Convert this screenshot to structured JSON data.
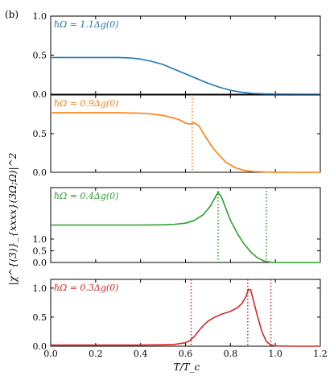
{
  "figure": {
    "panel_label": "(b)",
    "xlabel": "T/T_c",
    "ylabel": "|χ^{(3)}_{xxxx}(3Ω;Ω)|^2"
  },
  "chart_data": [
    {
      "type": "line",
      "annotation": "ℏΩ = 1.1Δg(0)",
      "color": "#1f77b4",
      "xlim": [
        0.0,
        1.2
      ],
      "ylim": [
        0.0,
        1.0
      ],
      "yticks": [
        "0.0",
        "0.5",
        "1.0"
      ],
      "xticks": [
        "0.0",
        "0.2",
        "0.4",
        "0.6",
        "0.8",
        "1.0",
        "1.2"
      ],
      "series": [
        {
          "x": [
            0.0,
            0.1,
            0.2,
            0.3,
            0.35,
            0.4,
            0.45,
            0.5,
            0.55,
            0.6,
            0.65,
            0.7,
            0.75,
            0.8,
            0.85,
            0.9,
            0.95,
            1.0,
            1.05,
            1.1,
            1.2
          ],
          "values": [
            0.47,
            0.47,
            0.47,
            0.47,
            0.465,
            0.45,
            0.42,
            0.38,
            0.32,
            0.26,
            0.2,
            0.14,
            0.09,
            0.05,
            0.025,
            0.01,
            0.004,
            0.002,
            0.001,
            0.0,
            0.0
          ]
        }
      ],
      "vlines": []
    },
    {
      "type": "line",
      "annotation": "ℏΩ = 0.9Δg(0)",
      "color": "#ff7f0e",
      "xlim": [
        0.0,
        1.2
      ],
      "ylim": [
        0.0,
        1.0
      ],
      "yticks": [
        "0.0",
        "0.5"
      ],
      "xticks": [
        "0.0",
        "0.2",
        "0.4",
        "0.6",
        "0.8",
        "1.0",
        "1.2"
      ],
      "series": [
        {
          "x": [
            0.0,
            0.1,
            0.2,
            0.3,
            0.4,
            0.45,
            0.5,
            0.55,
            0.58,
            0.6,
            0.62,
            0.64,
            0.66,
            0.68,
            0.7,
            0.72,
            0.75,
            0.78,
            0.82,
            0.86,
            0.9,
            0.95,
            1.0,
            1.1,
            1.2
          ],
          "values": [
            0.77,
            0.77,
            0.77,
            0.77,
            0.765,
            0.755,
            0.735,
            0.7,
            0.67,
            0.635,
            0.625,
            0.64,
            0.6,
            0.5,
            0.41,
            0.32,
            0.22,
            0.13,
            0.06,
            0.025,
            0.01,
            0.004,
            0.001,
            0.0,
            0.0
          ]
        }
      ],
      "vlines": [
        0.63
      ]
    },
    {
      "type": "line",
      "annotation": "ℏΩ = 0.4Δg(0)",
      "color": "#2ca02c",
      "xlim": [
        0.0,
        1.2
      ],
      "ylim": [
        0.0,
        3.2
      ],
      "yticks": [
        "0.0",
        "0.5",
        "1.0"
      ],
      "xticks": [
        "0.0",
        "0.2",
        "0.4",
        "0.6",
        "0.8",
        "1.0",
        "1.2"
      ],
      "series": [
        {
          "x": [
            0.0,
            0.1,
            0.2,
            0.3,
            0.4,
            0.5,
            0.55,
            0.6,
            0.64,
            0.68,
            0.71,
            0.73,
            0.745,
            0.76,
            0.78,
            0.8,
            0.83,
            0.86,
            0.89,
            0.92,
            0.95,
            0.98,
            1.0,
            1.1,
            1.2
          ],
          "values": [
            1.6,
            1.6,
            1.6,
            1.6,
            1.6,
            1.61,
            1.63,
            1.68,
            1.8,
            2.05,
            2.4,
            2.75,
            3.0,
            2.8,
            2.3,
            1.8,
            1.25,
            0.8,
            0.45,
            0.2,
            0.06,
            0.01,
            0.0,
            0.0,
            0.0
          ]
        }
      ],
      "vlines": [
        0.745,
        0.96
      ]
    },
    {
      "type": "line",
      "annotation": "ℏΩ = 0.3Δg(0)",
      "color": "#d62728",
      "xlim": [
        0.0,
        1.2
      ],
      "ylim": [
        0.0,
        1.15
      ],
      "yticks": [
        "0.0",
        "0.5",
        "1.0"
      ],
      "xticks": [
        "0.0",
        "0.2",
        "0.4",
        "0.6",
        "0.8",
        "1.0",
        "1.2"
      ],
      "series": [
        {
          "x": [
            0.0,
            0.1,
            0.2,
            0.3,
            0.4,
            0.5,
            0.55,
            0.6,
            0.62,
            0.64,
            0.66,
            0.68,
            0.7,
            0.73,
            0.76,
            0.8,
            0.83,
            0.85,
            0.87,
            0.88,
            0.89,
            0.9,
            0.92,
            0.94,
            0.96,
            0.98,
            1.0,
            1.1,
            1.2
          ],
          "values": [
            0.02,
            0.02,
            0.02,
            0.02,
            0.02,
            0.025,
            0.03,
            0.06,
            0.1,
            0.17,
            0.27,
            0.36,
            0.43,
            0.5,
            0.55,
            0.6,
            0.66,
            0.73,
            0.86,
            0.98,
            0.97,
            0.82,
            0.52,
            0.25,
            0.08,
            0.02,
            0.005,
            0.0,
            0.0
          ]
        }
      ],
      "vlines": [
        0.625,
        0.877,
        0.98
      ]
    }
  ]
}
